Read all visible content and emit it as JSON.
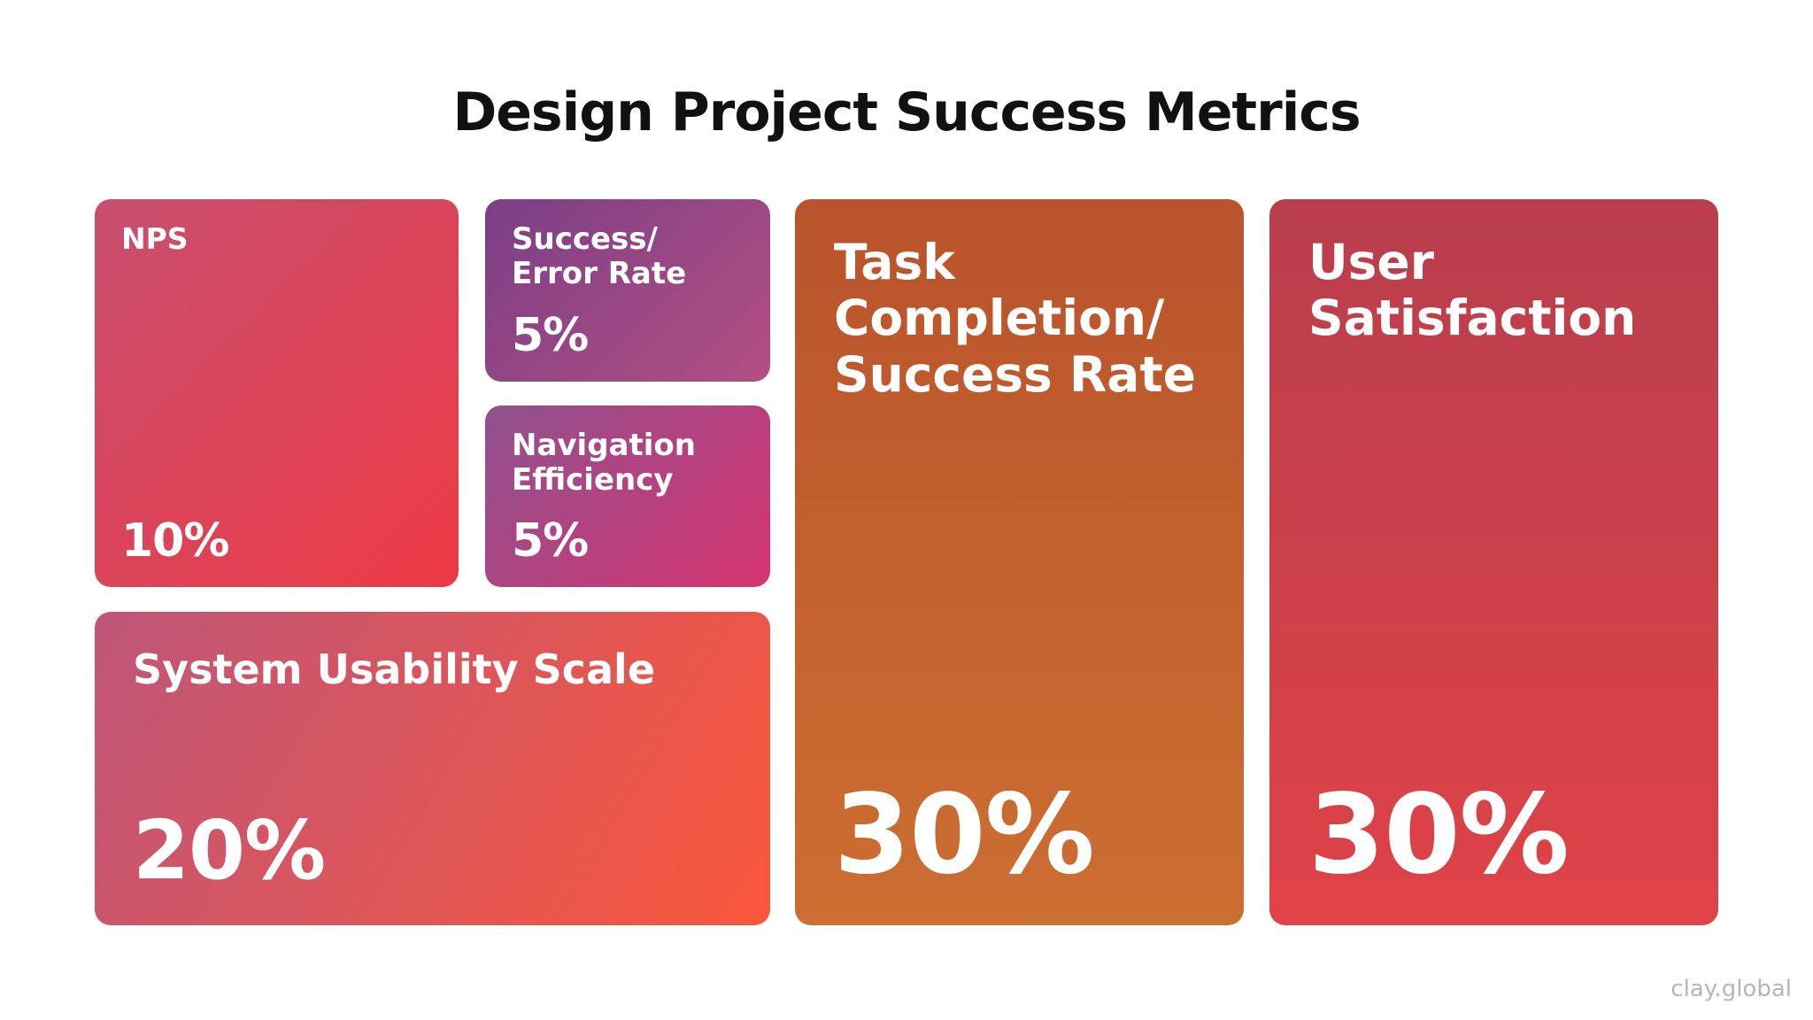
{
  "chart_data": {
    "type": "treemap",
    "title": "Design Project Success Metrics",
    "categories": [
      "NPS",
      "Success/\nError Rate",
      "Navigation\nEfficiency",
      "System Usability Scale",
      "Task\nCompletion/\nSuccess Rate",
      "User\nSatisfaction"
    ],
    "values": [
      10,
      5,
      5,
      20,
      30,
      30
    ],
    "value_labels": [
      "10%",
      "5%",
      "5%",
      "20%",
      "30%",
      "30%"
    ],
    "colors": [
      [
        "#c84f70",
        "#ed3a43"
      ],
      [
        "#7b3f86",
        "#b34f82"
      ],
      [
        "#8f5290",
        "#d63470"
      ],
      [
        "#be5679",
        "#f9573a"
      ],
      [
        "#b9532b",
        "#cc6f32"
      ],
      [
        "#b93e4d",
        "#df4347"
      ]
    ],
    "footer": "clay.global"
  }
}
